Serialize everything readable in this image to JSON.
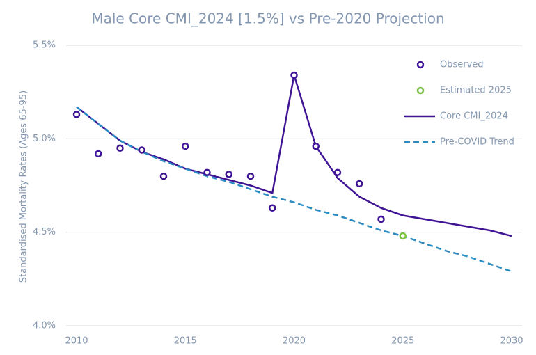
{
  "chart_data": {
    "type": "line",
    "title": "Male Core CMI_2024 [1.5%] vs Pre-2020 Projection",
    "y_label": "Standardised Mortality Rates (Ages 65-95)",
    "x": [
      2010,
      2011,
      2012,
      2013,
      2014,
      2015,
      2016,
      2017,
      2018,
      2019,
      2020,
      2021,
      2022,
      2023,
      2024,
      2025,
      2026,
      2027,
      2028,
      2029,
      2030
    ],
    "xlim": [
      2010,
      2030
    ],
    "xticks": [
      2010,
      2015,
      2020,
      2025,
      2030
    ],
    "ylim": [
      4.0,
      5.5
    ],
    "yticks": [
      {
        "value": 4.0,
        "label": "4.0%"
      },
      {
        "value": 4.5,
        "label": "4.5%"
      },
      {
        "value": 5.0,
        "label": "5.0%"
      },
      {
        "value": 5.5,
        "label": "5.5%"
      }
    ],
    "grid": true,
    "legend": "upper right",
    "series": [
      {
        "name": "Observed",
        "color": "#3f1495",
        "style": "markers",
        "values": [
          5.13,
          4.92,
          4.95,
          4.94,
          4.8,
          4.96,
          4.82,
          4.81,
          4.8,
          4.63,
          5.34,
          4.96,
          4.82,
          4.76,
          4.57,
          null,
          null,
          null,
          null,
          null,
          null
        ]
      },
      {
        "name": "Estimated 2025",
        "color": "#7cc242",
        "style": "markers",
        "values": [
          null,
          null,
          null,
          null,
          null,
          null,
          null,
          null,
          null,
          null,
          null,
          null,
          null,
          null,
          null,
          4.48,
          null,
          null,
          null,
          null,
          null
        ]
      },
      {
        "name": "Core CMI_2024",
        "color": "#3f1495",
        "style": "solid",
        "values": [
          5.17,
          5.08,
          4.99,
          4.93,
          4.89,
          4.84,
          4.81,
          4.78,
          4.75,
          4.71,
          5.34,
          4.96,
          4.79,
          4.69,
          4.63,
          4.59,
          4.57,
          4.55,
          4.53,
          4.51,
          4.48
        ]
      },
      {
        "name": "Pre-COVID Trend",
        "color": "#2b8cc4",
        "style": "dashed",
        "values": [
          5.17,
          5.08,
          4.99,
          4.93,
          4.88,
          4.84,
          4.8,
          4.77,
          4.73,
          4.69,
          4.66,
          4.62,
          4.59,
          4.55,
          4.51,
          4.48,
          4.44,
          4.4,
          4.37,
          4.33,
          4.29
        ]
      }
    ]
  }
}
